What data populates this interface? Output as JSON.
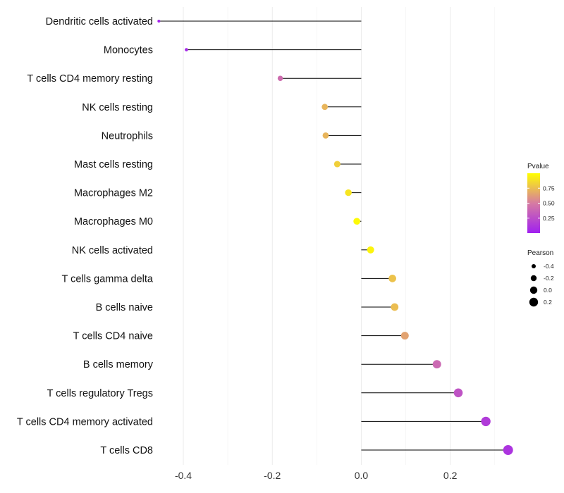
{
  "chart_data": {
    "type": "lollipop",
    "orientation": "horizontal",
    "title": "",
    "xlabel": "",
    "ylabel": "",
    "xlim": [
      -0.465,
      0.34
    ],
    "x_ticks": [
      -0.4,
      -0.2,
      0.0,
      0.2
    ],
    "x_tick_labels": [
      "-0.4",
      "-0.2",
      "0.0",
      "0.2"
    ],
    "x_minor_ticks": [
      -0.3,
      -0.1,
      0.1,
      0.3
    ],
    "grid": true,
    "stem_color": "#000000",
    "size_encodes": "Pearson",
    "color_encodes": "Pvalue",
    "categories": [
      "Dendritic cells activated",
      "Monocytes",
      "T cells CD4 memory resting",
      "NK cells resting",
      "Neutrophils",
      "Mast cells resting",
      "Macrophages M2",
      "Macrophages M0",
      "NK cells activated",
      "T cells gamma delta",
      "B cells naive",
      "T cells CD4 naive",
      "B cells memory",
      "T cells regulatory  Tregs",
      "T cells CD4 memory activated",
      "T cells CD8"
    ],
    "values": [
      -0.455,
      -0.393,
      -0.182,
      -0.082,
      -0.08,
      -0.054,
      -0.029,
      -0.01,
      0.021,
      0.07,
      0.075,
      0.098,
      0.17,
      0.218,
      0.28,
      0.33
    ],
    "pvalues": [
      0.03,
      0.06,
      0.42,
      0.72,
      0.72,
      0.82,
      0.9,
      0.98,
      0.96,
      0.77,
      0.75,
      0.65,
      0.4,
      0.28,
      0.15,
      0.11
    ],
    "legends": [
      {
        "title": "Pvalue",
        "type": "colorbar",
        "range": [
          0.0,
          1.0
        ],
        "ticks": [
          0.25,
          0.5,
          0.75
        ],
        "tick_labels": [
          "0.25",
          "0.50",
          "0.75"
        ],
        "colors": {
          "low": "#a020f0",
          "mid": "#d67ba2",
          "high": "#ffff00"
        }
      },
      {
        "title": "Pearson",
        "type": "size",
        "breaks": [
          -0.4,
          -0.2,
          0.0,
          0.2
        ],
        "labels": [
          "-0.4",
          "-0.2",
          "0.0",
          "0.2"
        ]
      }
    ]
  }
}
